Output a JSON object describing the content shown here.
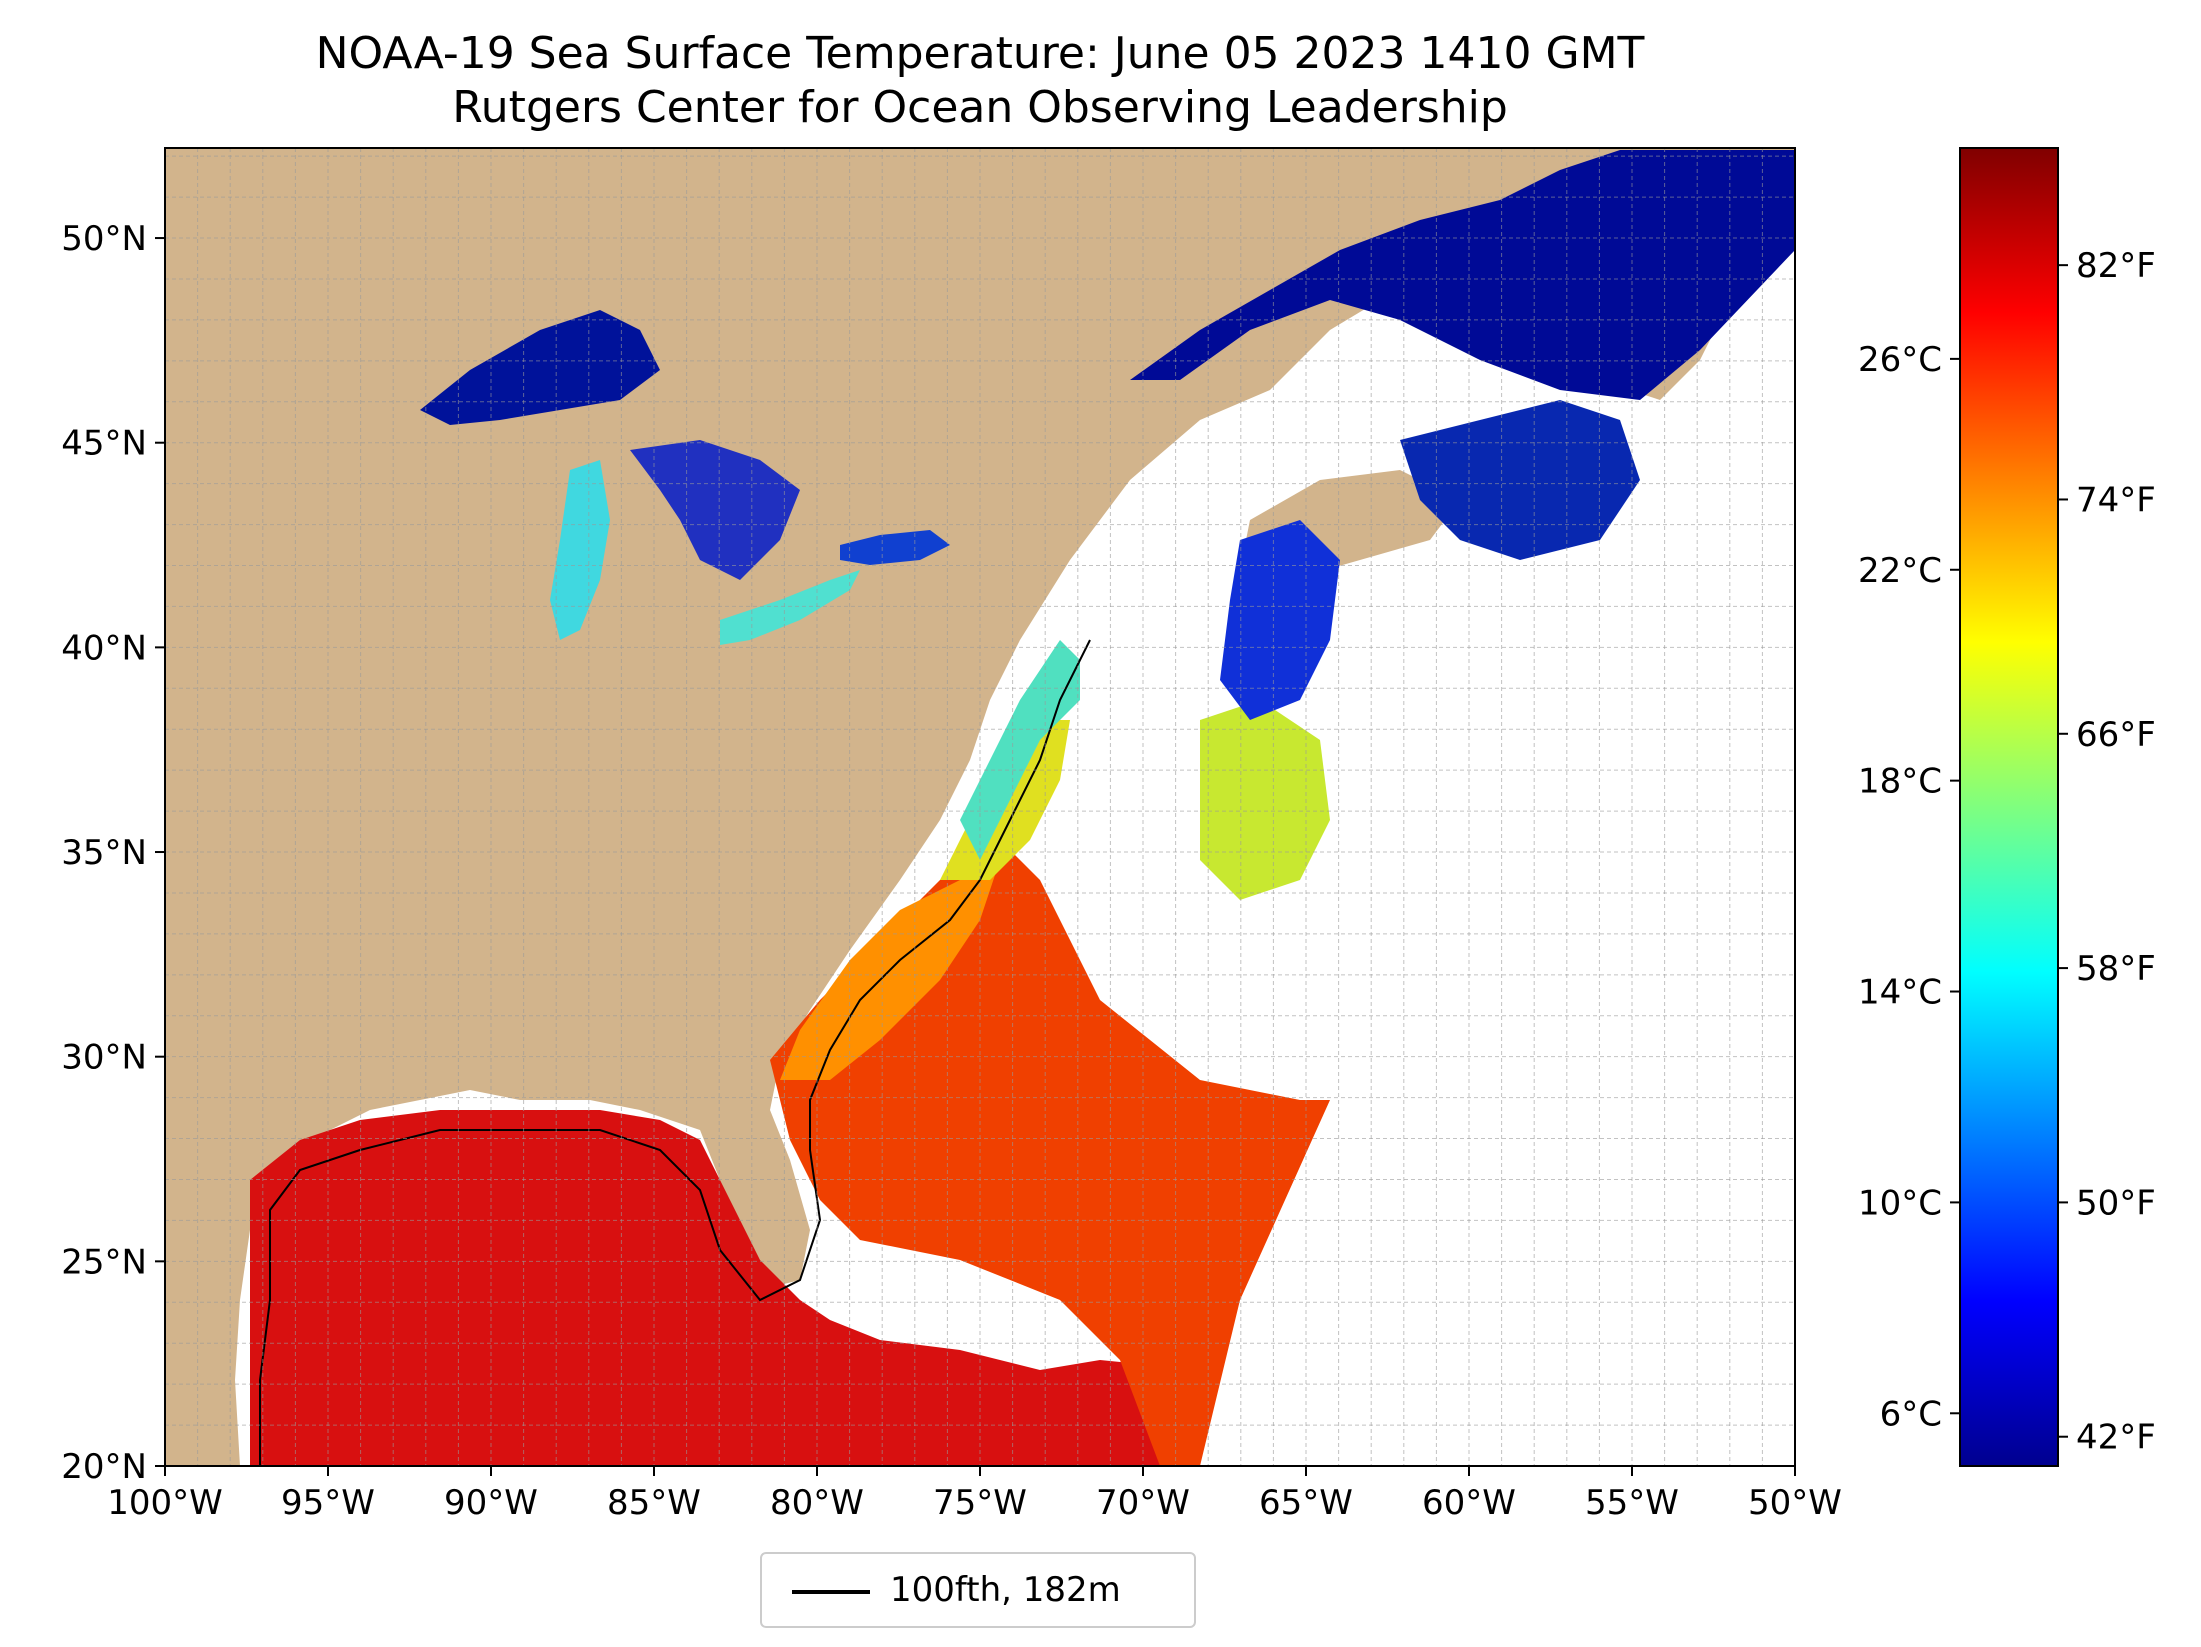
{
  "title": {
    "line1": "NOAA-19 Sea Surface Temperature: June 05 2023 1410 GMT",
    "line2": "Rutgers Center for Ocean Observing Leadership"
  },
  "map": {
    "lon_range": [
      -100,
      -50
    ],
    "lat_range": [
      20,
      52.2
    ],
    "lon_ticks": [
      "100°W",
      "95°W",
      "90°W",
      "85°W",
      "80°W",
      "75°W",
      "70°W",
      "65°W",
      "60°W",
      "55°W",
      "50°W"
    ],
    "lat_ticks": [
      "20°N",
      "25°N",
      "30°N",
      "35°N",
      "40°N",
      "45°N",
      "50°N"
    ],
    "land_color": "#d2b48c",
    "lake_color": "#9bb8e6",
    "gridlines": "dashed",
    "cloud_or_nodata": "white"
  },
  "colorbar": {
    "range_celsius": [
      5,
      30
    ],
    "celsius_labels": [
      "6°C",
      "10°C",
      "14°C",
      "18°C",
      "22°C",
      "26°C"
    ],
    "fahrenheit_labels": [
      "42°F",
      "50°F",
      "58°F",
      "66°F",
      "74°F",
      "82°F"
    ],
    "colormap": "jet"
  },
  "legend": {
    "label": "100fth, 182m"
  }
}
